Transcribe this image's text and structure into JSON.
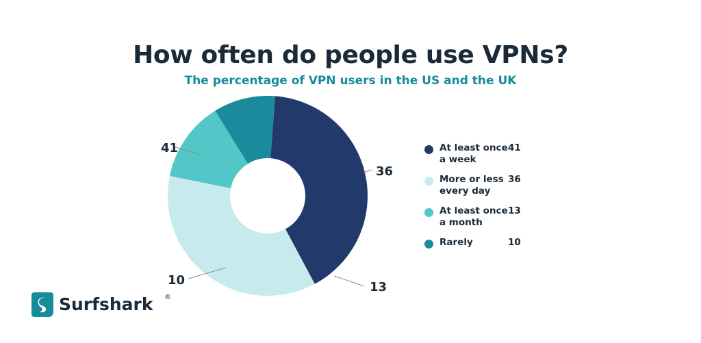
{
  "title": "How often do people use VPNs?",
  "subtitle": "The percentage of VPN users in the US and the UK",
  "chart_data": {
    "type": "pie",
    "donut": true,
    "title": "How often do people use VPNs?",
    "subtitle": "The percentage of VPN users in the US and the UK",
    "categories": [
      "At least once a week",
      "More or less every day",
      "At least once a month",
      "Rarely"
    ],
    "values": [
      41,
      36,
      13,
      10
    ],
    "colors": [
      "#213a6b",
      "#c7ebed",
      "#53c6c7",
      "#1a8a9c"
    ],
    "legend_position": "right"
  },
  "legend": [
    {
      "label": "At least once a week",
      "value": "41",
      "color": "#213a6b"
    },
    {
      "label": "More or less every day",
      "value": "36",
      "color": "#c7ebed"
    },
    {
      "label": "At least once a month",
      "value": "13",
      "color": "#53c6c7"
    },
    {
      "label": "Rarely",
      "value": "10",
      "color": "#1a8a9c"
    }
  ],
  "brand": {
    "name": "Surfshark",
    "mark": "®",
    "color": "#178a9c"
  }
}
